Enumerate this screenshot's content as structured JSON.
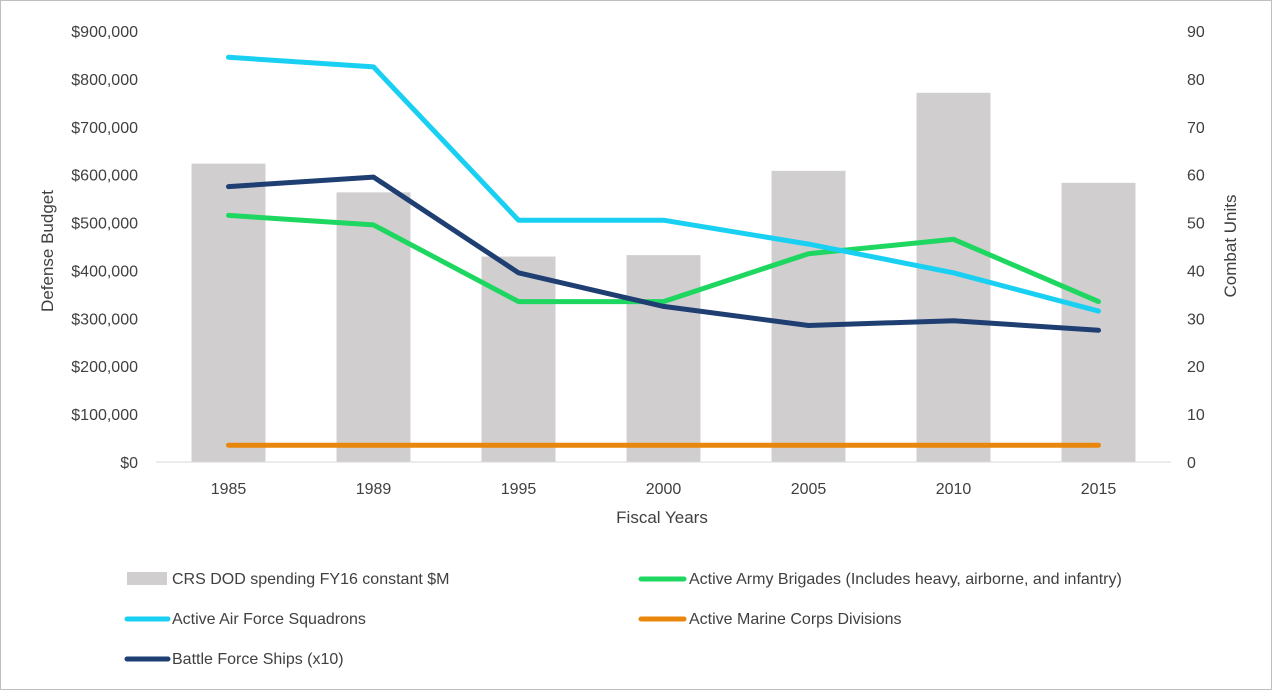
{
  "chart_data": {
    "type": "bar+line",
    "categories": [
      "1985",
      "1989",
      "1995",
      "2000",
      "2005",
      "2010",
      "2015"
    ],
    "xlabel": "Fiscal Years",
    "ylabel_left": "Defense Budget",
    "ylabel_right": "Combat Units",
    "ylim_left": [
      0,
      900000
    ],
    "ylim_right": [
      0,
      90
    ],
    "left_ticks": [
      "$0",
      "$100,000",
      "$200,000",
      "$300,000",
      "$400,000",
      "$500,000",
      "$600,000",
      "$700,000",
      "$800,000",
      "$900,000"
    ],
    "right_ticks": [
      "0",
      "10",
      "20",
      "30",
      "40",
      "50",
      "60",
      "70",
      "80",
      "90"
    ],
    "bars": {
      "name": "CRS DOD spending FY16 constant $M",
      "axis": "left",
      "color": "#d0cece",
      "values": [
        623000,
        563000,
        429000,
        432000,
        608000,
        771000,
        583000
      ]
    },
    "series": [
      {
        "name": "Active Army Brigades (Includes heavy, airborne, and infantry)",
        "axis": "right",
        "color": "#1ed760",
        "values": [
          51.5,
          49.5,
          33.5,
          33.5,
          43.5,
          46.5,
          33.5
        ]
      },
      {
        "name": "Active Air Force Squadrons",
        "axis": "right",
        "color": "#1ad0f2",
        "values": [
          84.5,
          82.5,
          50.5,
          50.5,
          45.5,
          39.5,
          31.5
        ]
      },
      {
        "name": "Active Marine Corps Divisions",
        "axis": "right",
        "color": "#e8870b",
        "values": [
          3.5,
          3.5,
          3.5,
          3.5,
          3.5,
          3.5,
          3.5
        ]
      },
      {
        "name": "Battle Force Ships (x10)",
        "axis": "right",
        "color": "#1f3f73",
        "values": [
          57.5,
          59.5,
          39.5,
          32.5,
          28.5,
          29.5,
          27.5
        ]
      }
    ],
    "legend_position": "bottom",
    "gridlines": false
  }
}
